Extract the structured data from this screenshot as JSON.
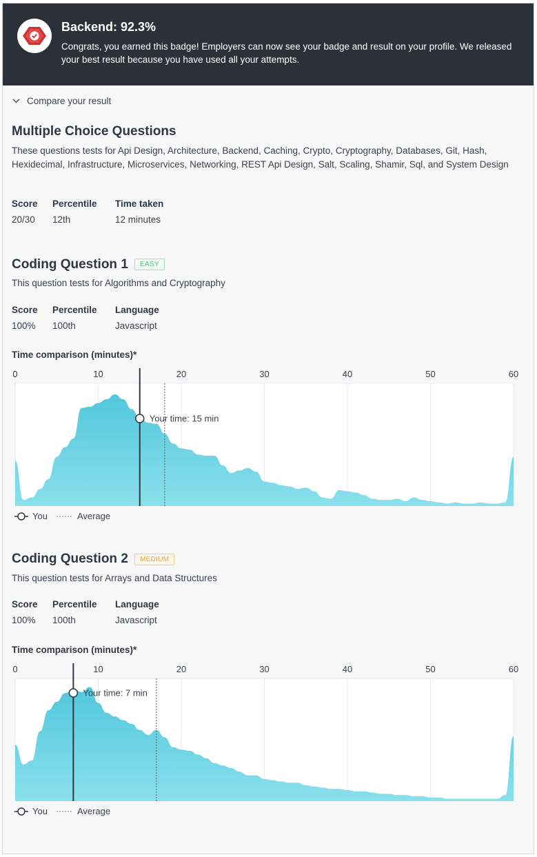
{
  "banner": {
    "title": "Backend: 92.3%",
    "text": "Congrats, you earned this badge! Employers can now see your badge and result on your profile. We released your best result because you have used all your attempts."
  },
  "compare_label": "Compare your result",
  "mcq": {
    "title": "Multiple Choice Questions",
    "description": "These questions tests for Api Design, Architecture, Backend, Caching, Crypto, Cryptography, Databases, Git, Hash, Hexidecimal, Infrastructure, Microservices, Networking, REST Api Design, Salt, Scaling, Shamir, Sql, and System Design",
    "stats": [
      {
        "label": "Score",
        "value": "20/30"
      },
      {
        "label": "Percentile",
        "value": "12th"
      },
      {
        "label": "Time taken",
        "value": "12 minutes"
      }
    ]
  },
  "cq1": {
    "title": "Coding Question 1",
    "difficulty": "EASY",
    "description": "This question tests for Algorithms and Cryptography",
    "stats": [
      {
        "label": "Score",
        "value": "100%"
      },
      {
        "label": "Percentile",
        "value": "100th"
      },
      {
        "label": "Language",
        "value": "Javascript"
      }
    ],
    "chart_title": "Time comparison (minutes)*",
    "your_time_label": "Your time: 15 min"
  },
  "cq2": {
    "title": "Coding Question 2",
    "difficulty": "MEDIUM",
    "description": "This question tests for Arrays and Data Structures",
    "stats": [
      {
        "label": "Score",
        "value": "100%"
      },
      {
        "label": "Percentile",
        "value": "100th"
      },
      {
        "label": "Language",
        "value": "Javascript"
      }
    ],
    "chart_title": "Time comparison (minutes)*",
    "your_time_label": "Your time: 7 min"
  },
  "legend": {
    "you": "You",
    "average": "Average"
  },
  "colors": {
    "banner": "#2c3038",
    "area": "#5ccde0",
    "badge": "#d83a3a"
  },
  "chart_data": [
    {
      "type": "area",
      "x": [
        0,
        1,
        2,
        3,
        4,
        5,
        6,
        7,
        8,
        9,
        10,
        11,
        12,
        13,
        14,
        15,
        16,
        17,
        18,
        19,
        20,
        21,
        22,
        23,
        24,
        25,
        26,
        27,
        28,
        29,
        30,
        31,
        32,
        33,
        34,
        35,
        36,
        37,
        38,
        39,
        40,
        41,
        42,
        43,
        44,
        45,
        46,
        47,
        48,
        49,
        50,
        51,
        52,
        53,
        54,
        55,
        56,
        57,
        58,
        59,
        60
      ],
      "values": [
        0.37,
        0.05,
        0.07,
        0.14,
        0.22,
        0.4,
        0.48,
        0.55,
        0.8,
        0.81,
        0.84,
        0.87,
        0.91,
        0.87,
        0.79,
        0.72,
        0.68,
        0.67,
        0.59,
        0.51,
        0.47,
        0.46,
        0.42,
        0.41,
        0.41,
        0.33,
        0.27,
        0.29,
        0.31,
        0.28,
        0.2,
        0.19,
        0.17,
        0.16,
        0.14,
        0.15,
        0.12,
        0.07,
        0.06,
        0.13,
        0.12,
        0.11,
        0.09,
        0.06,
        0.05,
        0.05,
        0.06,
        0.04,
        0.07,
        0.05,
        0.04,
        0.03,
        0.02,
        0.03,
        0.02,
        0.02,
        0.03,
        0.02,
        0.02,
        0.03,
        0.4
      ],
      "xlim": [
        0,
        60
      ],
      "xticks": [
        0,
        10,
        20,
        30,
        40,
        50,
        60
      ],
      "you": 15,
      "average": 18,
      "grid": true
    },
    {
      "type": "area",
      "x": [
        0,
        1,
        2,
        3,
        4,
        5,
        6,
        7,
        8,
        9,
        10,
        11,
        12,
        13,
        14,
        15,
        16,
        17,
        18,
        19,
        20,
        21,
        22,
        23,
        24,
        25,
        26,
        27,
        28,
        29,
        30,
        31,
        32,
        33,
        34,
        35,
        36,
        37,
        38,
        39,
        40,
        41,
        42,
        43,
        44,
        45,
        46,
        47,
        48,
        49,
        50,
        51,
        52,
        53,
        54,
        55,
        56,
        57,
        58,
        59,
        60
      ],
      "values": [
        0.46,
        0.3,
        0.33,
        0.57,
        0.74,
        0.81,
        0.88,
        0.91,
        0.89,
        0.93,
        0.8,
        0.72,
        0.69,
        0.66,
        0.63,
        0.58,
        0.54,
        0.58,
        0.52,
        0.44,
        0.42,
        0.41,
        0.38,
        0.35,
        0.31,
        0.29,
        0.27,
        0.24,
        0.21,
        0.21,
        0.18,
        0.17,
        0.16,
        0.15,
        0.15,
        0.13,
        0.12,
        0.11,
        0.1,
        0.1,
        0.09,
        0.08,
        0.08,
        0.07,
        0.06,
        0.06,
        0.05,
        0.05,
        0.04,
        0.04,
        0.03,
        0.03,
        0.02,
        0.02,
        0.02,
        0.02,
        0.02,
        0.02,
        0.02,
        0.05,
        0.53
      ],
      "xlim": [
        0,
        60
      ],
      "xticks": [
        0,
        10,
        20,
        30,
        40,
        50,
        60
      ],
      "you": 7,
      "average": 17,
      "grid": true
    }
  ]
}
